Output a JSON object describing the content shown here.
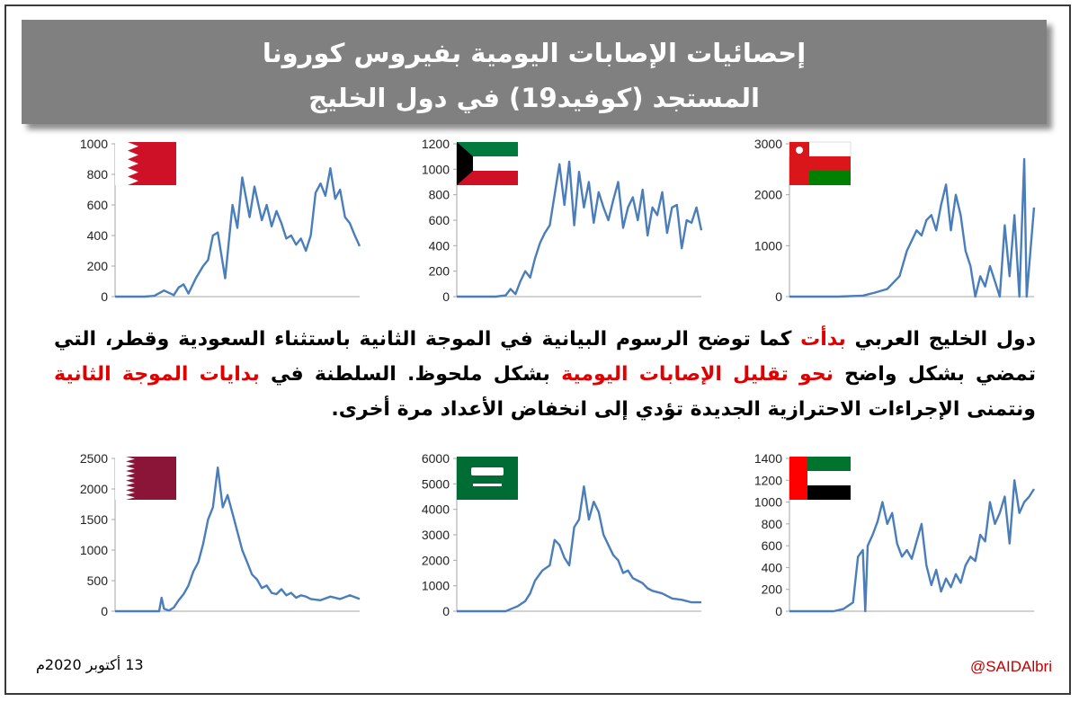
{
  "banner": {
    "line1": "إحصائيات الإصابات اليومية بفيروس كورونا",
    "line2": "المستجد (كوفيد19) في دول الخليج"
  },
  "paragraph": {
    "s1": "دول الخليج العربي ",
    "s2": "بدأت",
    "s3": " كما توضح الرسوم البيانية في الموجة الثانية باستثناء السعودية وقطر، التي تمضي بشكل واضح ",
    "s4": "نحو تقليل الإصابات اليومية",
    "s5": " بشكل ملحوظ. السلطنة في ",
    "s6": "بدايات الموجة الثانية",
    "s7": " ونتمنى الإجراءات الاحترازية الجديدة تؤدي إلى انخفاض الأعداد مرة أخرى."
  },
  "footer": {
    "date": "13 أكتوبر 2020م",
    "handle": "@SAIDAlbri"
  },
  "colors": {
    "line": "#4a7ebb",
    "banner": "#808080",
    "highlight": "#e00000",
    "axis": "#a6a6a6"
  },
  "chart_data": [
    {
      "type": "line",
      "country_flag": "bahrain-flag",
      "yticks": [
        0,
        200,
        400,
        600,
        800,
        1000
      ],
      "ylim": [
        0,
        1000
      ],
      "x": [
        0,
        8,
        12,
        16,
        20,
        24,
        26,
        28,
        30,
        33,
        36,
        38,
        40,
        42,
        45,
        48,
        50,
        52,
        55,
        57,
        60,
        62,
        64,
        66,
        68,
        70,
        72,
        74,
        76,
        78,
        80,
        82,
        84,
        86,
        88,
        90,
        92,
        94,
        96,
        98,
        100
      ],
      "values": [
        0,
        0,
        0,
        5,
        40,
        10,
        60,
        80,
        20,
        120,
        200,
        240,
        400,
        420,
        120,
        600,
        450,
        780,
        520,
        720,
        500,
        600,
        460,
        560,
        480,
        380,
        400,
        340,
        380,
        300,
        400,
        680,
        740,
        660,
        840,
        640,
        700,
        520,
        480,
        400,
        330
      ]
    },
    {
      "type": "line",
      "country_flag": "kuwait-flag",
      "yticks": [
        0,
        200,
        400,
        600,
        800,
        1000,
        1200
      ],
      "ylim": [
        0,
        1200
      ],
      "x": [
        0,
        8,
        12,
        16,
        20,
        22,
        24,
        26,
        28,
        30,
        32,
        34,
        36,
        38,
        40,
        42,
        44,
        46,
        48,
        50,
        52,
        54,
        56,
        58,
        60,
        62,
        64,
        66,
        68,
        70,
        72,
        74,
        76,
        78,
        80,
        82,
        84,
        86,
        88,
        90,
        92,
        94,
        96,
        98,
        100
      ],
      "values": [
        0,
        0,
        0,
        0,
        10,
        60,
        20,
        120,
        200,
        150,
        300,
        420,
        500,
        560,
        800,
        1040,
        720,
        1060,
        560,
        980,
        700,
        900,
        580,
        820,
        700,
        600,
        760,
        900,
        540,
        700,
        780,
        600,
        840,
        480,
        700,
        640,
        820,
        500,
        700,
        720,
        380,
        600,
        580,
        700,
        520
      ]
    },
    {
      "type": "line",
      "country_flag": "oman-flag",
      "yticks": [
        0,
        1000,
        2000,
        3000
      ],
      "ylim": [
        0,
        3000
      ],
      "x": [
        0,
        10,
        20,
        30,
        35,
        40,
        42,
        45,
        48,
        50,
        52,
        54,
        56,
        58,
        60,
        62,
        64,
        66,
        68,
        70,
        72,
        74,
        76,
        78,
        80,
        82,
        84,
        86,
        88,
        90,
        92,
        94,
        96,
        97,
        98,
        100
      ],
      "values": [
        0,
        0,
        0,
        20,
        80,
        150,
        250,
        400,
        900,
        1100,
        1300,
        1200,
        1500,
        1600,
        1300,
        1800,
        2200,
        1300,
        2000,
        1600,
        900,
        600,
        0,
        400,
        200,
        600,
        300,
        0,
        1400,
        400,
        1600,
        0,
        2700,
        0,
        600,
        1750
      ]
    },
    {
      "type": "line",
      "country_flag": "qatar-flag",
      "yticks": [
        0,
        500,
        1000,
        1500,
        2000,
        2500
      ],
      "ylim": [
        0,
        2500
      ],
      "x": [
        0,
        10,
        18,
        19,
        20,
        22,
        24,
        26,
        28,
        30,
        32,
        34,
        36,
        38,
        40,
        42,
        44,
        46,
        48,
        50,
        52,
        54,
        56,
        58,
        60,
        62,
        64,
        66,
        68,
        70,
        72,
        74,
        76,
        78,
        80,
        84,
        88,
        92,
        96,
        100
      ],
      "values": [
        0,
        0,
        0,
        220,
        40,
        10,
        60,
        180,
        280,
        420,
        650,
        800,
        1100,
        1500,
        1700,
        2350,
        1700,
        1900,
        1600,
        1300,
        1000,
        800,
        600,
        520,
        380,
        420,
        300,
        280,
        360,
        260,
        300,
        220,
        260,
        240,
        200,
        180,
        240,
        200,
        260,
        200
      ]
    },
    {
      "type": "line",
      "country_flag": "saudi-flag",
      "yticks": [
        0,
        1000,
        2000,
        3000,
        4000,
        5000,
        6000
      ],
      "ylim": [
        0,
        6000
      ],
      "x": [
        0,
        10,
        20,
        22,
        25,
        28,
        30,
        32,
        35,
        38,
        40,
        42,
        44,
        46,
        48,
        50,
        52,
        54,
        56,
        58,
        60,
        62,
        64,
        66,
        68,
        70,
        72,
        74,
        76,
        78,
        80,
        84,
        88,
        92,
        96,
        100
      ],
      "values": [
        0,
        0,
        0,
        80,
        200,
        400,
        700,
        1200,
        1600,
        1800,
        2800,
        2600,
        2100,
        1800,
        3300,
        3600,
        4900,
        3600,
        4300,
        3900,
        3000,
        2600,
        2200,
        2000,
        1500,
        1600,
        1300,
        1200,
        1100,
        900,
        800,
        700,
        500,
        450,
        350,
        350
      ]
    },
    {
      "type": "line",
      "country_flag": "uae-flag",
      "yticks": [
        0,
        200,
        400,
        600,
        800,
        1000,
        1200,
        1400
      ],
      "ylim": [
        0,
        1400
      ],
      "x": [
        0,
        10,
        18,
        22,
        26,
        28,
        30,
        31,
        32,
        34,
        36,
        38,
        40,
        42,
        44,
        46,
        48,
        50,
        52,
        54,
        56,
        58,
        60,
        62,
        64,
        66,
        68,
        70,
        72,
        74,
        76,
        78,
        80,
        82,
        84,
        86,
        88,
        90,
        92,
        94,
        96,
        98,
        100
      ],
      "values": [
        0,
        0,
        0,
        20,
        80,
        500,
        560,
        0,
        600,
        700,
        820,
        1000,
        800,
        900,
        620,
        500,
        560,
        480,
        640,
        800,
        420,
        240,
        380,
        180,
        300,
        220,
        340,
        260,
        420,
        500,
        460,
        700,
        640,
        1000,
        800,
        900,
        1050,
        620,
        1200,
        900,
        1000,
        1050,
        1120
      ]
    }
  ]
}
